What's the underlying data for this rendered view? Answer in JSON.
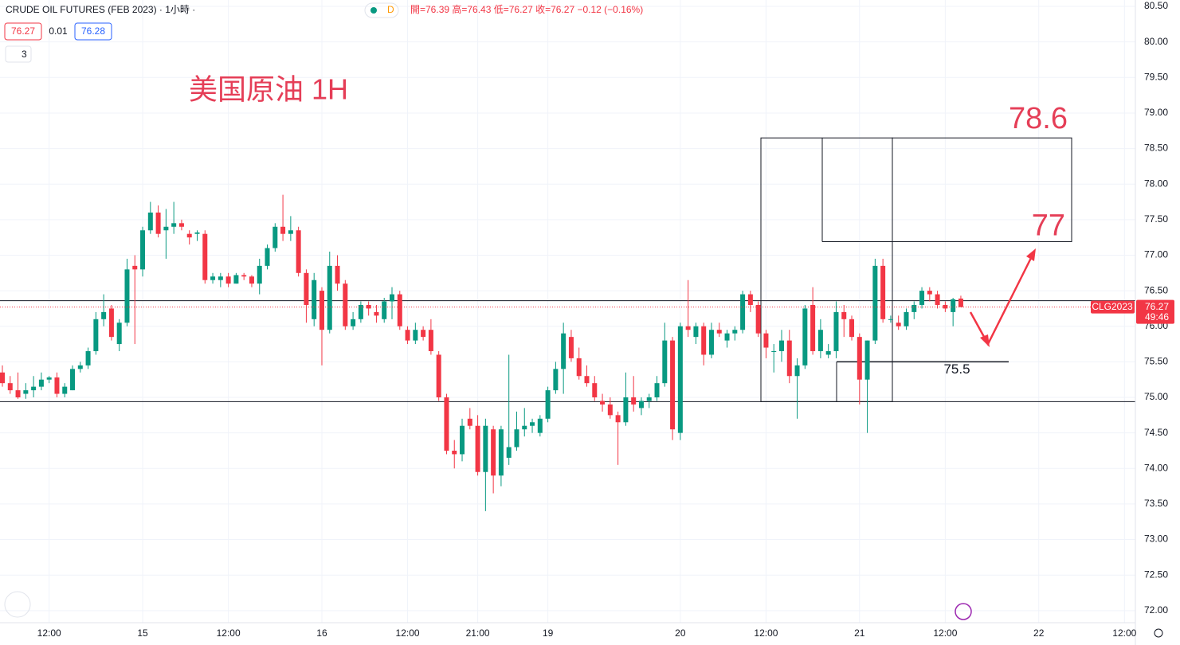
{
  "chart_data": {
    "type": "candlestick",
    "title": "CRUDE OIL FUTURES (FEB 2023) · 1小時 ·",
    "badge": "D",
    "ohlc_legend": "開=76.39 高=76.43 低=76.27 收=76.27 −0.12 (−0.16%)",
    "bid": "76.27",
    "spread": "0.01",
    "ask": "76.28",
    "indicators": "3",
    "annotation": "美国原油 1H",
    "symbol": "CLG2023",
    "last_price_label": "76.27",
    "countdown": "49:46",
    "up_color": "#089981",
    "down_color": "#f23645",
    "levels": [
      76.36,
      74.94
    ],
    "box_levels": {
      "top": 78.65,
      "mid": 77.19,
      "bottom": 74.94
    },
    "target_line": 75.5,
    "target_labels": {
      "high": "78.6",
      "mid": "77",
      "low": "75.5"
    },
    "ylim": [
      71.83,
      80.59
    ],
    "yticks": [
      {
        "value": 72,
        "label": "72.00"
      },
      {
        "value": 72.5,
        "label": "72.50"
      },
      {
        "value": 73,
        "label": "73.00"
      },
      {
        "value": 73.5,
        "label": "73.50"
      },
      {
        "value": 74,
        "label": "74.00"
      },
      {
        "value": 74.5,
        "label": "74.50"
      },
      {
        "value": 75,
        "label": "75.00"
      },
      {
        "value": 75.5,
        "label": "75.50"
      },
      {
        "value": 76,
        "label": "76.00"
      },
      {
        "value": 76.5,
        "label": "76.50"
      },
      {
        "value": 77,
        "label": "77.00"
      },
      {
        "value": 77.5,
        "label": "77.50"
      },
      {
        "value": 78,
        "label": "78.00"
      },
      {
        "value": 78.5,
        "label": "78.50"
      },
      {
        "value": 79,
        "label": "79.00"
      },
      {
        "value": 79.5,
        "label": "79.50"
      },
      {
        "value": 80,
        "label": "80.00"
      },
      {
        "value": 80.5,
        "label": "80.50"
      }
    ],
    "grid": true,
    "categories": [
      null,
      null,
      null,
      null,
      null,
      null,
      "12:00",
      null,
      null,
      null,
      null,
      null,
      null,
      null,
      null,
      null,
      null,
      null,
      "15",
      null,
      null,
      null,
      null,
      null,
      null,
      null,
      null,
      null,
      null,
      "12:00",
      null,
      null,
      null,
      null,
      null,
      null,
      null,
      null,
      null,
      null,
      null,
      "16",
      null,
      null,
      null,
      null,
      null,
      null,
      null,
      null,
      null,
      null,
      "12:00",
      null,
      null,
      null,
      null,
      null,
      null,
      null,
      null,
      "21:00",
      null,
      null,
      null,
      null,
      null,
      null,
      null,
      null,
      "19",
      null,
      null,
      null,
      null,
      null,
      null,
      null,
      null,
      null,
      null,
      null,
      null,
      null,
      null,
      null,
      null,
      "20",
      null,
      null,
      null,
      null,
      null,
      null,
      null,
      null,
      null,
      null,
      "12:00",
      null,
      null,
      null,
      null,
      null,
      null,
      null,
      null,
      null,
      null,
      null,
      "21",
      null,
      null,
      null,
      null,
      null,
      null,
      null,
      null,
      null,
      null,
      "12:00",
      null,
      null,
      null,
      null,
      null,
      null,
      null,
      null,
      null,
      null,
      null,
      "22",
      null,
      null,
      null,
      null,
      null,
      null,
      null,
      null,
      null,
      null,
      "12:00"
    ],
    "open": [
      75.35,
      75.2,
      75.1,
      75.05,
      75.1,
      75.15,
      75.25,
      75.28,
      75.05,
      75.1,
      75.4,
      75.45,
      75.65,
      76.1,
      76.25,
      75.75,
      76.05,
      76.85,
      76.8,
      77.35,
      77.6,
      77.35,
      77.4,
      77.45,
      77.3,
      77.3,
      77.3,
      76.65,
      76.65,
      76.7,
      76.6,
      76.72,
      76.7,
      76.6,
      76.85,
      77.1,
      77.4,
      77.3,
      77.35,
      76.75,
      76.1,
      76.5,
      75.95,
      76.85,
      76.6,
      76.0,
      76.1,
      76.3,
      76.2,
      76.1,
      76.35,
      76.45,
      75.95,
      75.8,
      75.95,
      75.95,
      75.6,
      75.0,
      74.25,
      74.2,
      74.7,
      74.6,
      73.95,
      74.55,
      73.9,
      74.15,
      74.3,
      74.55,
      74.6,
      74.5,
      74.7,
      75.1,
      75.4,
      75.85,
      75.55,
      75.3,
      75.2,
      74.95,
      74.9,
      74.75,
      74.65,
      75.0,
      74.85,
      74.95,
      75.0,
      75.2,
      75.8,
      74.5,
      76.0,
      75.85,
      76.0,
      75.6,
      75.95,
      75.8,
      75.9,
      75.95,
      76.45,
      76.3,
      75.9,
      75.65,
      75.65,
      75.8,
      75.3,
      75.45,
      76.3,
      75.65,
      75.6,
      75.65,
      76.2,
      76.1,
      75.85,
      75.25,
      75.8,
      76.85,
      76.1,
      76.05,
      76.0,
      76.2,
      76.3,
      76.5,
      76.45,
      76.3,
      76.2,
      76.39,
      null,
      null,
      null,
      null,
      null,
      null,
      null,
      null,
      null,
      null,
      null,
      null,
      null,
      null,
      null,
      null,
      null,
      null,
      null,
      null,
      null
    ],
    "high": [
      75.45,
      75.3,
      75.35,
      75.2,
      75.3,
      75.35,
      75.3,
      75.35,
      75.2,
      75.45,
      75.5,
      75.7,
      76.2,
      76.45,
      76.3,
      76.1,
      76.95,
      77.0,
      77.4,
      77.75,
      77.7,
      77.65,
      77.75,
      77.5,
      77.35,
      77.35,
      77.35,
      76.75,
      76.75,
      76.75,
      76.75,
      76.75,
      76.72,
      76.95,
      77.15,
      77.45,
      77.85,
      77.55,
      77.4,
      76.8,
      76.75,
      76.55,
      77.05,
      77.0,
      76.65,
      76.2,
      76.35,
      76.35,
      76.3,
      76.4,
      76.55,
      76.5,
      76.0,
      76.05,
      76.0,
      76.1,
      75.65,
      75.05,
      74.4,
      74.7,
      74.85,
      74.75,
      74.7,
      74.6,
      74.6,
      75.6,
      74.8,
      74.85,
      74.7,
      74.75,
      75.15,
      75.5,
      76.05,
      75.95,
      75.7,
      75.45,
      75.3,
      75.05,
      75.0,
      74.8,
      75.35,
      75.3,
      75.0,
      75.05,
      75.3,
      76.05,
      75.85,
      76.05,
      76.65,
      76.05,
      76.05,
      76.05,
      76.05,
      75.95,
      76.0,
      76.5,
      76.5,
      76.35,
      75.95,
      75.75,
      75.95,
      75.95,
      75.55,
      76.3,
      76.55,
      76.1,
      75.75,
      76.35,
      76.3,
      76.15,
      75.9,
      75.8,
      76.95,
      76.95,
      76.15,
      76.15,
      76.25,
      76.35,
      76.55,
      76.55,
      76.5,
      76.35,
      76.4,
      76.43,
      null,
      null,
      null,
      null,
      null,
      null,
      null,
      null,
      null,
      null,
      null,
      null,
      null,
      null,
      null,
      null,
      null,
      null,
      null,
      null,
      null
    ],
    "low": [
      75.15,
      75.05,
      74.98,
      74.98,
      75.0,
      75.1,
      75.2,
      75.0,
      75.0,
      75.1,
      75.35,
      75.4,
      75.6,
      76.0,
      75.8,
      75.65,
      76.0,
      75.75,
      76.7,
      77.3,
      77.25,
      76.95,
      77.3,
      77.35,
      77.15,
      77.2,
      76.6,
      76.6,
      76.55,
      76.55,
      76.6,
      76.65,
      76.55,
      76.45,
      76.8,
      77.05,
      77.2,
      77.2,
      76.7,
      76.05,
      76.0,
      75.45,
      75.9,
      76.5,
      75.95,
      75.95,
      76.05,
      76.15,
      76.05,
      76.05,
      76.1,
      75.95,
      75.75,
      75.75,
      75.8,
      75.6,
      74.95,
      74.2,
      74.0,
      74.1,
      74.55,
      73.9,
      73.4,
      73.65,
      73.75,
      74.05,
      74.25,
      74.45,
      74.5,
      74.45,
      74.65,
      75.05,
      75.05,
      75.5,
      75.25,
      75.15,
      74.95,
      74.8,
      74.7,
      74.05,
      74.6,
      74.8,
      74.75,
      74.85,
      74.95,
      75.15,
      74.4,
      74.4,
      75.85,
      75.75,
      75.45,
      75.55,
      75.85,
      75.7,
      75.8,
      75.9,
      76.2,
      75.85,
      75.55,
      75.35,
      75.5,
      75.2,
      74.7,
      75.4,
      75.6,
      75.55,
      75.55,
      75.55,
      75.85,
      75.8,
      74.9,
      74.5,
      75.75,
      76.05,
      76.05,
      75.95,
      75.95,
      76.1,
      76.25,
      76.35,
      76.25,
      76.2,
      76.0,
      76.27,
      null,
      null,
      null,
      null,
      null,
      null,
      null,
      null,
      null,
      null,
      null,
      null,
      null,
      null,
      null,
      null,
      null,
      null,
      null,
      null,
      null
    ],
    "close": [
      75.2,
      75.1,
      75.0,
      75.1,
      75.15,
      75.25,
      75.28,
      75.05,
      75.15,
      75.4,
      75.45,
      75.65,
      76.1,
      76.2,
      75.85,
      76.05,
      76.8,
      76.8,
      77.35,
      77.6,
      77.3,
      77.4,
      77.45,
      77.4,
      77.25,
      77.32,
      76.65,
      76.7,
      76.7,
      76.6,
      76.72,
      76.7,
      76.6,
      76.85,
      77.1,
      77.4,
      77.3,
      77.35,
      76.75,
      76.3,
      76.65,
      75.95,
      76.85,
      76.6,
      76.0,
      76.1,
      76.3,
      76.25,
      76.15,
      76.35,
      76.45,
      76.0,
      75.8,
      75.95,
      75.85,
      75.65,
      75.0,
      74.25,
      74.2,
      74.6,
      74.6,
      73.95,
      74.6,
      73.9,
      74.55,
      74.3,
      74.55,
      74.6,
      74.65,
      74.7,
      75.1,
      75.4,
      75.9,
      75.55,
      75.3,
      75.2,
      75.0,
      74.9,
      74.75,
      74.65,
      75.0,
      74.9,
      74.95,
      75.0,
      75.2,
      75.8,
      74.55,
      76.0,
      75.95,
      76.0,
      75.6,
      75.95,
      75.9,
      75.9,
      75.95,
      76.45,
      76.3,
      75.9,
      75.7,
      75.65,
      75.8,
      75.3,
      75.45,
      76.25,
      75.65,
      75.95,
      75.65,
      76.2,
      76.1,
      75.85,
      75.25,
      75.8,
      76.85,
      76.1,
      76.1,
      76.0,
      76.2,
      76.3,
      76.5,
      76.45,
      76.3,
      76.25,
      76.38,
      76.27,
      null,
      null,
      null,
      null,
      null,
      null,
      null,
      null,
      null,
      null,
      null,
      null,
      null,
      null,
      null,
      null,
      null,
      null,
      null,
      null,
      null
    ]
  }
}
